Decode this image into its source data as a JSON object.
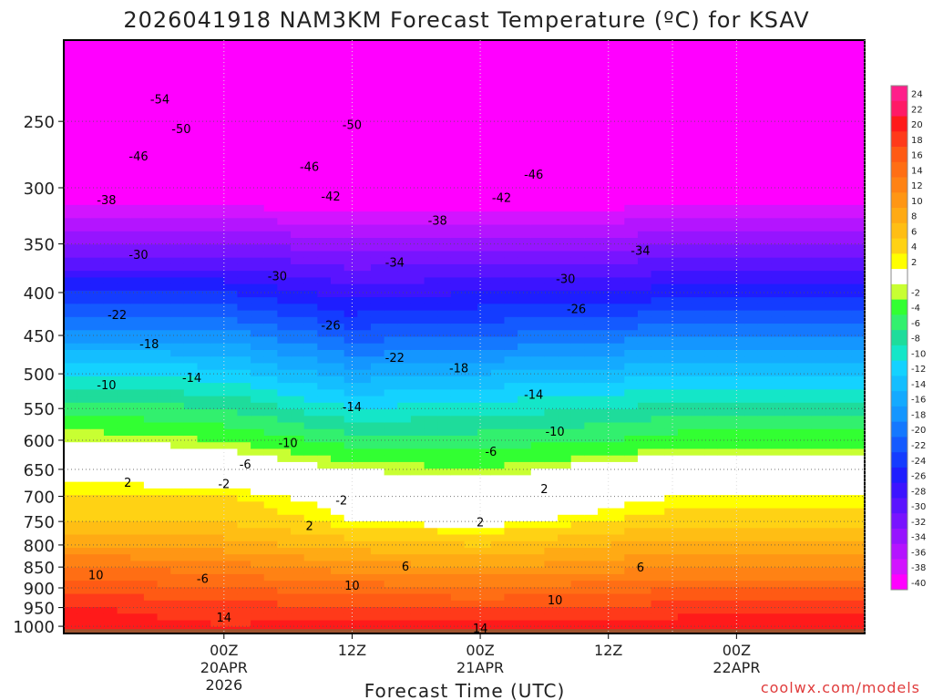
{
  "chart_data": {
    "type": "heatmap",
    "title": "2026041918 NAM3KM Forecast Temperature (ºC) for KSAV",
    "xlabel": "Forecast Time (UTC)",
    "ylabel": "",
    "credit": "coolwx.com/models",
    "y_scale": "log-pressure (hPa), inverted",
    "grid": "dotted gray",
    "legend": "right colorbar",
    "y_ticks": [
      250,
      300,
      350,
      400,
      450,
      500,
      550,
      600,
      650,
      700,
      750,
      800,
      850,
      900,
      950,
      1000
    ],
    "x_ticks": [
      {
        "label": [
          "00Z",
          "20APR",
          "2026"
        ]
      },
      {
        "label": [
          "12Z"
        ]
      },
      {
        "label": [
          "00Z",
          "21APR"
        ]
      },
      {
        "label": [
          "12Z"
        ]
      },
      {
        "label": [
          "00Z",
          "22APR"
        ]
      }
    ],
    "x_hours": [
      -18,
      -6,
      6,
      18,
      30,
      36,
      42,
      54
    ],
    "isotherms_note": "temperature profile (°C) at sampled pressure levels for each forecast hour",
    "profile_levels": [
      200,
      250,
      300,
      350,
      400,
      450,
      500,
      550,
      600,
      650,
      700,
      750,
      800,
      850,
      900,
      950,
      1000
    ],
    "profiles": [
      {
        "hour": -18,
        "temps": [
          -56,
          -51,
          -42,
          -33,
          -25,
          -18,
          -11,
          -6,
          -2,
          1,
          3,
          5,
          9,
          13,
          16,
          19,
          20
        ]
      },
      {
        "hour": -6,
        "temps": [
          -56,
          -50,
          -42,
          -33,
          -25,
          -18,
          -12,
          -7,
          -3,
          0,
          3,
          5,
          8,
          12,
          15,
          18,
          19
        ]
      },
      {
        "hour": 6,
        "temps": [
          -56,
          -50,
          -43,
          -34,
          -28,
          -22,
          -16,
          -11,
          -6,
          -2,
          1,
          2,
          6,
          10,
          14,
          17,
          20
        ]
      },
      {
        "hour": 18,
        "temps": [
          -57,
          -50,
          -42,
          -34,
          -27,
          -21,
          -15,
          -10,
          -6,
          -3,
          0,
          1,
          5,
          9,
          13,
          17,
          20
        ]
      },
      {
        "hour": 30,
        "temps": [
          -56,
          -50,
          -42,
          -34,
          -27,
          -20,
          -14,
          -9,
          -5,
          -1,
          1,
          3,
          7,
          10,
          14,
          17,
          20
        ]
      },
      {
        "hour": 36,
        "temps": [
          -56,
          -50,
          -42,
          -33,
          -26,
          -19,
          -13,
          -8,
          -4,
          0,
          2,
          4,
          8,
          11,
          15,
          18,
          20
        ]
      }
    ],
    "colorbar": [
      {
        "value": 24,
        "color": "#ff1f8a"
      },
      {
        "value": 22,
        "color": "#ff1a66"
      },
      {
        "value": 20,
        "color": "#ff1a1a"
      },
      {
        "value": 18,
        "color": "#ff3a1a"
      },
      {
        "value": 16,
        "color": "#ff5a14"
      },
      {
        "value": 14,
        "color": "#ff6e14"
      },
      {
        "value": 12,
        "color": "#ff8214"
      },
      {
        "value": 10,
        "color": "#ff9614"
      },
      {
        "value": 8,
        "color": "#ffaa14"
      },
      {
        "value": 6,
        "color": "#ffbe14"
      },
      {
        "value": 4,
        "color": "#ffd214"
      },
      {
        "value": 2,
        "color": "#ffff00"
      },
      {
        "value": "",
        "color": "#ffffff"
      },
      {
        "value": -2,
        "color": "#c8ff32"
      },
      {
        "value": -4,
        "color": "#32ff32"
      },
      {
        "value": -6,
        "color": "#32f06e"
      },
      {
        "value": -8,
        "color": "#1edc9b"
      },
      {
        "value": -10,
        "color": "#14e6c8"
      },
      {
        "value": -12,
        "color": "#14d2ff"
      },
      {
        "value": -14,
        "color": "#14beff"
      },
      {
        "value": -16,
        "color": "#14aaff"
      },
      {
        "value": -18,
        "color": "#1496ff"
      },
      {
        "value": -20,
        "color": "#1478ff"
      },
      {
        "value": -22,
        "color": "#145aff"
      },
      {
        "value": -24,
        "color": "#143cff"
      },
      {
        "value": -26,
        "color": "#1e1eff"
      },
      {
        "value": -28,
        "color": "#3c14ff"
      },
      {
        "value": -30,
        "color": "#5a14ff"
      },
      {
        "value": -32,
        "color": "#7814ff"
      },
      {
        "value": -34,
        "color": "#9614ff"
      },
      {
        "value": -36,
        "color": "#b414ff"
      },
      {
        "value": -38,
        "color": "#d214ff"
      },
      {
        "value": -40,
        "color": "#ff00ff"
      }
    ],
    "contour_labels": [
      {
        "text": "-54",
        "hour": -12,
        "p": 235
      },
      {
        "text": "-50",
        "hour": -10,
        "p": 255
      },
      {
        "text": "-46",
        "hour": -14,
        "p": 275
      },
      {
        "text": "-38",
        "hour": -17,
        "p": 310
      },
      {
        "text": "-30",
        "hour": -14,
        "p": 360
      },
      {
        "text": "-22",
        "hour": -16,
        "p": 425
      },
      {
        "text": "-18",
        "hour": -13,
        "p": 460
      },
      {
        "text": "-14",
        "hour": -9,
        "p": 505
      },
      {
        "text": "-10",
        "hour": -17,
        "p": 515
      },
      {
        "text": "-6",
        "hour": -4,
        "p": 640
      },
      {
        "text": "-2",
        "hour": -6,
        "p": 676
      },
      {
        "text": "2",
        "hour": -15,
        "p": 673
      },
      {
        "text": "-50",
        "hour": 6,
        "p": 252
      },
      {
        "text": "-46",
        "hour": 2,
        "p": 283
      },
      {
        "text": "-42",
        "hour": 4,
        "p": 307
      },
      {
        "text": "-38",
        "hour": 14,
        "p": 328
      },
      {
        "text": "-34",
        "hour": 10,
        "p": 368
      },
      {
        "text": "-30",
        "hour": -1,
        "p": 382
      },
      {
        "text": "-26",
        "hour": 4,
        "p": 437
      },
      {
        "text": "-22",
        "hour": 10,
        "p": 478
      },
      {
        "text": "-18",
        "hour": 16,
        "p": 492
      },
      {
        "text": "-14",
        "hour": 6,
        "p": 547
      },
      {
        "text": "-10",
        "hour": 0,
        "p": 604
      },
      {
        "text": "-6",
        "hour": 19,
        "p": 618
      },
      {
        "text": "-2",
        "hour": 5,
        "p": 707
      },
      {
        "text": "2",
        "hour": 2,
        "p": 758
      },
      {
        "text": "2",
        "hour": 18,
        "p": 751
      },
      {
        "text": "6",
        "hour": 11,
        "p": 848
      },
      {
        "text": "-6",
        "hour": -8,
        "p": 877
      },
      {
        "text": "10",
        "hour": 6,
        "p": 893
      },
      {
        "text": "10",
        "hour": -18,
        "p": 868
      },
      {
        "text": "14",
        "hour": -6,
        "p": 975
      },
      {
        "text": "14",
        "hour": 18,
        "p": 1005
      },
      {
        "text": "-46",
        "hour": 23,
        "p": 289
      },
      {
        "text": "-42",
        "hour": 20,
        "p": 308
      },
      {
        "text": "-34",
        "hour": 33,
        "p": 356
      },
      {
        "text": "-30",
        "hour": 26,
        "p": 385
      },
      {
        "text": "-26",
        "hour": 27,
        "p": 418
      },
      {
        "text": "-14",
        "hour": 23,
        "p": 529
      },
      {
        "text": "-10",
        "hour": 25,
        "p": 585
      },
      {
        "text": "2",
        "hour": 24,
        "p": 685
      },
      {
        "text": "6",
        "hour": 33,
        "p": 850
      },
      {
        "text": "10",
        "hour": 25,
        "p": 930
      }
    ]
  }
}
